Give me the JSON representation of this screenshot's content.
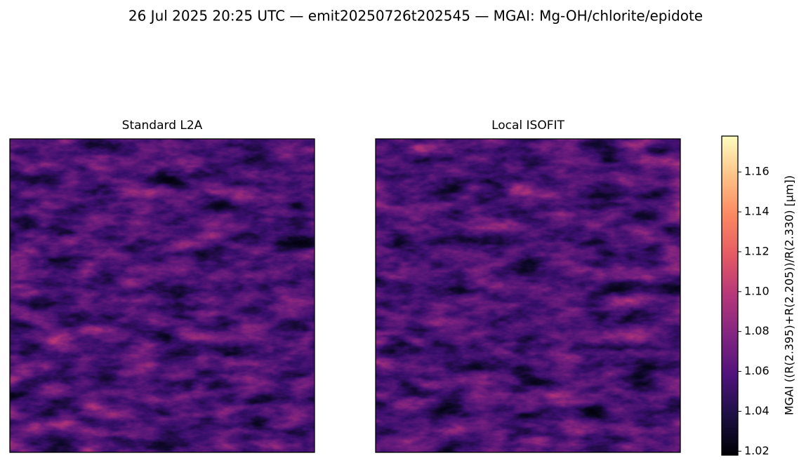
{
  "chart_data": {
    "type": "image",
    "title": "26 Jul 2025 20:25 UTC — emit20250726t202545 — MGAI: Mg-OH/chlorite/epidote",
    "panels": [
      "Standard L2A",
      "Local ISOFIT"
    ],
    "colormap": "magma",
    "colorbar": {
      "label": "MGAI  ((R(2.395)+R(2.205))/R(2.330)  [µm])",
      "ylim": [
        1.018,
        1.178
      ],
      "yticks": [
        1.02,
        1.04,
        1.06,
        1.08,
        {
          "value": 1.1,
          "label": "1.10"
        },
        1.12,
        1.14,
        1.16
      ]
    }
  }
}
